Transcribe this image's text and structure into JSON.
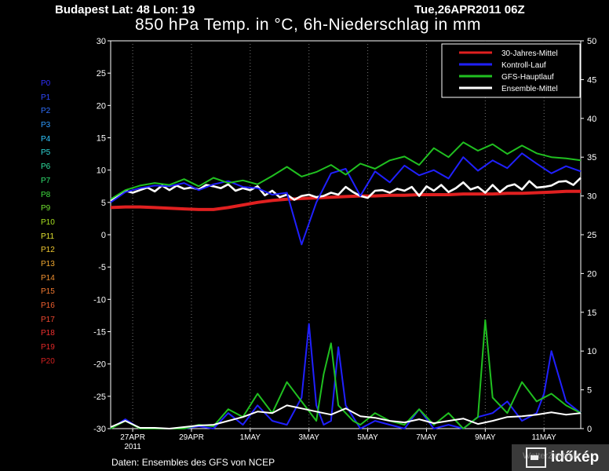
{
  "header": {
    "location": "Budapest   Lat: 48 Lon: 19",
    "datetime": "Tue,26APR2011 06Z",
    "title": "850 hPa Temp. in °C, 6h-Niederschlag in mm"
  },
  "footer": {
    "source": "Daten: Ensembles des GFS von NCEP"
  },
  "brand": {
    "name": "időkép",
    "watermark": "WetterZentrale"
  },
  "members": [
    {
      "name": "P0",
      "color": "#3030ff"
    },
    {
      "name": "P1",
      "color": "#3048ff"
    },
    {
      "name": "P2",
      "color": "#3070ff"
    },
    {
      "name": "P3",
      "color": "#2f9cff"
    },
    {
      "name": "P4",
      "color": "#2fc6ff"
    },
    {
      "name": "P5",
      "color": "#2fd8d8"
    },
    {
      "name": "P6",
      "color": "#2fe0a0"
    },
    {
      "name": "P7",
      "color": "#30e070"
    },
    {
      "name": "P8",
      "color": "#40e040"
    },
    {
      "name": "P9",
      "color": "#70e030"
    },
    {
      "name": "P10",
      "color": "#a8e020"
    },
    {
      "name": "P11",
      "color": "#e0e030"
    },
    {
      "name": "P12",
      "color": "#f0c830"
    },
    {
      "name": "P13",
      "color": "#f0a830"
    },
    {
      "name": "P14",
      "color": "#f09030"
    },
    {
      "name": "P15",
      "color": "#f07830"
    },
    {
      "name": "P16",
      "color": "#f06030"
    },
    {
      "name": "P17",
      "color": "#f04830"
    },
    {
      "name": "P18",
      "color": "#f03030"
    },
    {
      "name": "P19",
      "color": "#e02828"
    },
    {
      "name": "P20",
      "color": "#d02020"
    }
  ],
  "chart_data": {
    "type": "line",
    "x_unit": "hours since 26APR2011 06Z",
    "x_ticks": [
      {
        "label": "27APR",
        "sub": "2011",
        "x": 18
      },
      {
        "label": "29APR",
        "x": 66
      },
      {
        "label": "1MAY",
        "x": 114
      },
      {
        "label": "3MAY",
        "x": 162
      },
      {
        "label": "5MAY",
        "x": 210
      },
      {
        "label": "7MAY",
        "x": 258
      },
      {
        "label": "9MAY",
        "x": 306
      },
      {
        "label": "11MAY",
        "x": 354
      }
    ],
    "xlim": [
      0,
      384
    ],
    "y_left": {
      "label": "°C",
      "lim": [
        -30,
        30
      ],
      "ticks": [
        30,
        25,
        20,
        15,
        10,
        5,
        0,
        -5,
        -10,
        -15,
        -20,
        -25,
        -30
      ]
    },
    "y_right": {
      "label": "mm",
      "lim": [
        0,
        50
      ],
      "ticks": [
        50,
        45,
        40,
        35,
        30,
        25,
        20,
        15,
        10,
        5,
        0
      ]
    },
    "legend": {
      "position": "top-right",
      "entries": [
        {
          "name": "30-Jahres-Mittel",
          "color": "#e02020"
        },
        {
          "name": "Kontroll-Lauf",
          "color": "#2020ff"
        },
        {
          "name": "GFS-Hauptlauf",
          "color": "#20c020"
        },
        {
          "name": "Ensemble-Mittel",
          "color": "#ffffff"
        }
      ]
    },
    "series": [
      {
        "name": "30-Jahres-Mittel",
        "axis": "left",
        "color": "#e02020",
        "x": [
          0,
          12,
          24,
          36,
          48,
          60,
          72,
          84,
          96,
          108,
          120,
          132,
          144,
          156,
          168,
          180,
          192,
          204,
          216,
          228,
          240,
          252,
          264,
          276,
          288,
          300,
          312,
          324,
          336,
          348,
          360,
          372,
          384
        ],
        "y": [
          4.2,
          4.3,
          4.3,
          4.2,
          4.1,
          4.0,
          3.9,
          3.9,
          4.2,
          4.6,
          5.0,
          5.3,
          5.5,
          5.6,
          5.7,
          5.8,
          5.9,
          6.0,
          6.0,
          6.1,
          6.1,
          6.2,
          6.2,
          6.2,
          6.3,
          6.3,
          6.3,
          6.4,
          6.4,
          6.5,
          6.6,
          6.7,
          6.7
        ]
      },
      {
        "name": "Ensemble-Mittel",
        "axis": "left",
        "color": "#ffffff",
        "x": [
          0,
          6,
          12,
          18,
          24,
          30,
          36,
          42,
          48,
          54,
          60,
          66,
          72,
          78,
          84,
          90,
          96,
          102,
          108,
          114,
          120,
          126,
          132,
          138,
          144,
          150,
          156,
          162,
          168,
          174,
          180,
          186,
          192,
          198,
          204,
          210,
          216,
          222,
          228,
          234,
          240,
          246,
          252,
          258,
          264,
          270,
          276,
          282,
          288,
          294,
          300,
          306,
          312,
          318,
          324,
          330,
          336,
          342,
          348,
          354,
          360,
          366,
          372,
          378,
          384
        ],
        "y": [
          5.2,
          6.0,
          6.8,
          6.5,
          6.9,
          7.3,
          6.7,
          7.6,
          6.9,
          7.6,
          7.1,
          7.3,
          7.0,
          7.7,
          7.5,
          7.2,
          7.8,
          6.8,
          7.2,
          6.9,
          7.5,
          6.1,
          6.8,
          5.8,
          6.2,
          5.4,
          6.0,
          6.2,
          5.8,
          6.0,
          6.5,
          6.2,
          7.4,
          6.6,
          6.0,
          5.7,
          6.8,
          6.9,
          6.5,
          7.1,
          6.8,
          7.4,
          6.0,
          7.5,
          6.8,
          7.7,
          6.6,
          7.2,
          8.1,
          7.0,
          7.4,
          6.5,
          7.7,
          6.6,
          7.5,
          7.8,
          7.0,
          8.3,
          7.3,
          7.4,
          7.6,
          8.2,
          8.3,
          7.7,
          8.8
        ]
      },
      {
        "name": "Kontroll-Lauf",
        "axis": "left",
        "color": "#2020ff",
        "x": [
          0,
          12,
          24,
          36,
          48,
          60,
          72,
          84,
          96,
          108,
          120,
          132,
          144,
          156,
          168,
          180,
          192,
          204,
          216,
          228,
          240,
          252,
          264,
          276,
          288,
          300,
          312,
          324,
          336,
          348,
          360,
          372,
          384
        ],
        "y": [
          5.0,
          6.6,
          7.2,
          7.6,
          7.5,
          8.0,
          6.9,
          7.8,
          8.3,
          7.4,
          7.2,
          6.2,
          6.5,
          -1.5,
          5.0,
          9.5,
          10.2,
          6.0,
          9.8,
          8.1,
          10.7,
          9.2,
          10.0,
          8.7,
          12.0,
          9.9,
          11.5,
          10.3,
          12.6,
          11.0,
          9.5,
          10.6,
          9.8
        ]
      },
      {
        "name": "GFS-Hauptlauf",
        "axis": "left",
        "color": "#20c020",
        "x": [
          0,
          12,
          24,
          36,
          48,
          60,
          72,
          84,
          96,
          108,
          120,
          132,
          144,
          156,
          168,
          180,
          192,
          204,
          216,
          228,
          240,
          252,
          264,
          276,
          288,
          300,
          312,
          324,
          336,
          348,
          360,
          372,
          384
        ],
        "y": [
          5.5,
          6.9,
          7.6,
          8.0,
          7.7,
          8.6,
          7.5,
          8.8,
          8.0,
          8.4,
          7.8,
          9.1,
          10.5,
          9.0,
          9.7,
          10.8,
          9.3,
          11.0,
          10.2,
          11.5,
          12.1,
          10.8,
          13.4,
          12.0,
          14.3,
          13.0,
          14.0,
          12.5,
          13.8,
          12.6,
          12.0,
          11.8,
          11.5
        ]
      },
      {
        "name": "Kontroll-Lauf Niederschlag",
        "axis": "right",
        "color": "#2020ff",
        "x": [
          0,
          12,
          24,
          36,
          48,
          60,
          72,
          84,
          96,
          108,
          120,
          132,
          144,
          156,
          162,
          168,
          174,
          180,
          186,
          192,
          198,
          204,
          216,
          228,
          240,
          252,
          264,
          276,
          288,
          300,
          312,
          324,
          336,
          348,
          354,
          360,
          372,
          384
        ],
        "y": [
          0,
          1.2,
          0,
          0,
          0,
          0,
          0.3,
          0,
          2.0,
          0.5,
          3.0,
          1.0,
          0.5,
          4.0,
          13.5,
          3.0,
          0.5,
          1.0,
          10.5,
          3.0,
          1.5,
          0,
          1.0,
          0.5,
          0,
          2.5,
          0,
          0.5,
          0,
          1.5,
          2.0,
          3.5,
          1.0,
          2.0,
          4.5,
          10.0,
          3.5,
          2.0
        ]
      },
      {
        "name": "GFS-Hauptlauf Niederschlag",
        "axis": "right",
        "color": "#20c020",
        "x": [
          0,
          12,
          24,
          36,
          48,
          60,
          72,
          84,
          96,
          108,
          120,
          132,
          144,
          156,
          168,
          174,
          180,
          186,
          192,
          198,
          204,
          216,
          228,
          240,
          252,
          264,
          276,
          288,
          300,
          306,
          312,
          324,
          336,
          348,
          360,
          372,
          384
        ],
        "y": [
          0,
          1.0,
          0,
          0,
          0,
          0,
          0.5,
          0.3,
          2.5,
          1.5,
          4.5,
          2.0,
          6.0,
          3.5,
          1.0,
          7.0,
          11.0,
          3.0,
          2.0,
          1.0,
          0.5,
          2.0,
          1.0,
          0.5,
          2.5,
          0.5,
          2.0,
          0,
          1.5,
          14.0,
          4.0,
          2.0,
          6.0,
          3.5,
          4.5,
          3.0,
          2.0
        ]
      },
      {
        "name": "Ensemble-Mittel Niederschlag",
        "axis": "right",
        "color": "#ffffff",
        "x": [
          0,
          12,
          24,
          36,
          48,
          60,
          72,
          84,
          96,
          108,
          120,
          132,
          144,
          156,
          168,
          180,
          192,
          204,
          216,
          228,
          240,
          252,
          264,
          276,
          288,
          300,
          312,
          324,
          336,
          348,
          360,
          372,
          384
        ],
        "y": [
          0.2,
          1.0,
          0.1,
          0.1,
          0,
          0.2,
          0.4,
          0.5,
          1.0,
          1.5,
          2.2,
          2.0,
          3.0,
          2.6,
          2.2,
          1.8,
          2.6,
          1.6,
          1.4,
          1.0,
          0.8,
          1.2,
          0.7,
          1.0,
          1.3,
          0.6,
          1.0,
          1.5,
          1.6,
          1.8,
          2.1,
          1.8,
          2.0
        ]
      }
    ]
  }
}
